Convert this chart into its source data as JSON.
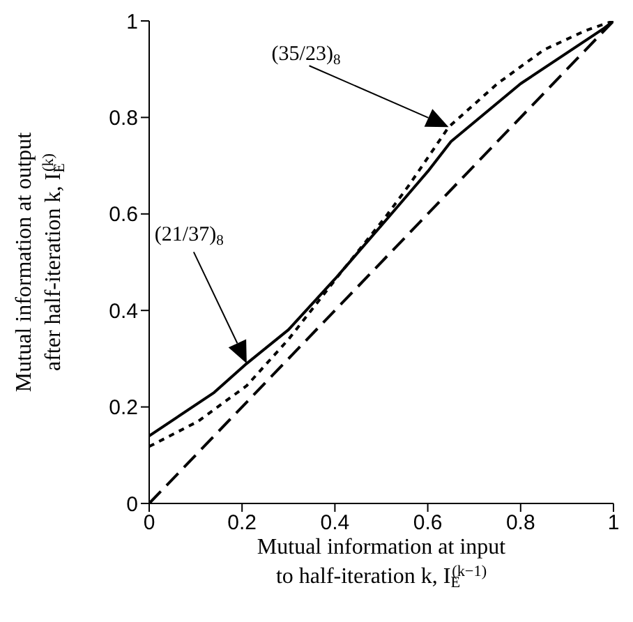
{
  "chart_data": {
    "type": "line",
    "xlabel": "Mutual information at input to half-iteration k, I$_{E}$$^{(k−1)}$",
    "ylabel": "Mutual information at output after half-iteration k, I$_{E}$$^{(k)}$",
    "xlim": [
      0,
      1
    ],
    "ylim": [
      0,
      1
    ],
    "xticks": [
      0,
      0.2,
      0.4,
      0.6,
      0.8,
      1
    ],
    "yticks": [
      0,
      0.2,
      0.4,
      0.6,
      0.8,
      1
    ],
    "marker": "none",
    "series": [
      {
        "color": "#000000",
        "line_style": "solid",
        "x": [
          0,
          0.14,
          0.21,
          0.3,
          0.4,
          0.51,
          0.6,
          0.65,
          0.8,
          0.98,
          1
        ],
        "values": [
          0.14,
          0.23,
          0.29,
          0.36,
          0.465,
          0.587,
          0.688,
          0.75,
          0.87,
          0.985,
          1
        ]
      },
      {
        "color": "#000000",
        "line_style": "dotted",
        "x": [
          0,
          0.105,
          0.21,
          0.3,
          0.41,
          0.51,
          0.56,
          0.645,
          0.75,
          0.85,
          0.94,
          1
        ],
        "values": [
          0.118,
          0.17,
          0.244,
          0.34,
          0.475,
          0.595,
          0.66,
          0.78,
          0.87,
          0.94,
          0.98,
          1
        ]
      },
      {
        "color": "#000000",
        "line_style": "dashed",
        "x": [
          0,
          1
        ],
        "values": [
          0,
          1
        ]
      }
    ],
    "annotations": [
      "(35/23)$_{8}$",
      "(21/37)$_{8}$"
    ]
  }
}
